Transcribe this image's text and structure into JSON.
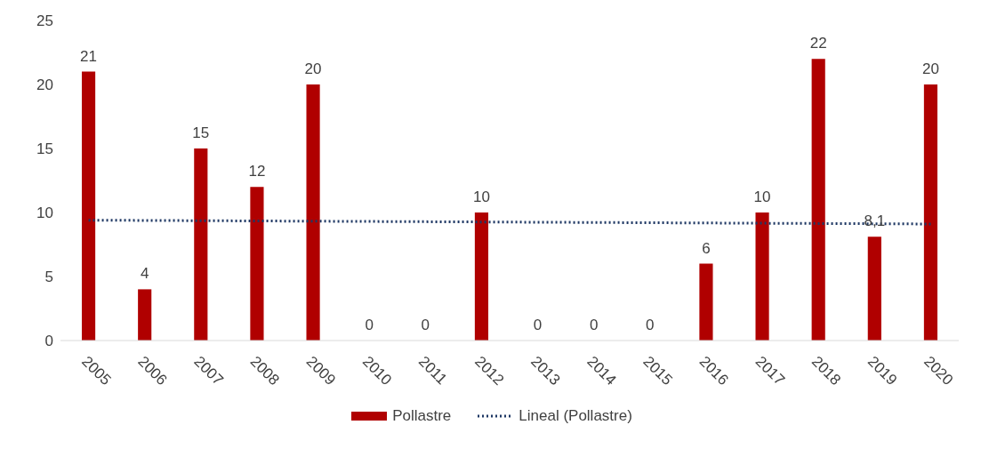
{
  "chart_data": {
    "type": "bar",
    "categories": [
      "2005",
      "2006",
      "2007",
      "2008",
      "2009",
      "2010",
      "2011",
      "2012",
      "2013",
      "2014",
      "2015",
      "2016",
      "2017",
      "2018",
      "2019",
      "2020"
    ],
    "series": [
      {
        "name": "Pollastre",
        "color": "#b00000",
        "values": [
          21,
          4,
          15,
          12,
          20,
          0,
          0,
          10,
          0,
          0,
          0,
          6,
          10,
          22,
          8.1,
          20
        ],
        "value_labels": [
          "21",
          "4",
          "15",
          "12",
          "20",
          "0",
          "0",
          "10",
          "0",
          "0",
          "0",
          "6",
          "10",
          "22",
          "8,1",
          "20"
        ]
      },
      {
        "name": "Lineal (Pollastre)",
        "type": "line",
        "color": "#1f3864",
        "line_style": "dotted",
        "values": [
          9.4,
          null,
          null,
          null,
          null,
          null,
          null,
          null,
          null,
          null,
          null,
          null,
          null,
          null,
          null,
          9.1
        ]
      }
    ],
    "ylim": [
      0,
      25
    ],
    "yticks": [
      0,
      5,
      10,
      15,
      20,
      25
    ],
    "legend": "bottom",
    "marker": "none"
  }
}
